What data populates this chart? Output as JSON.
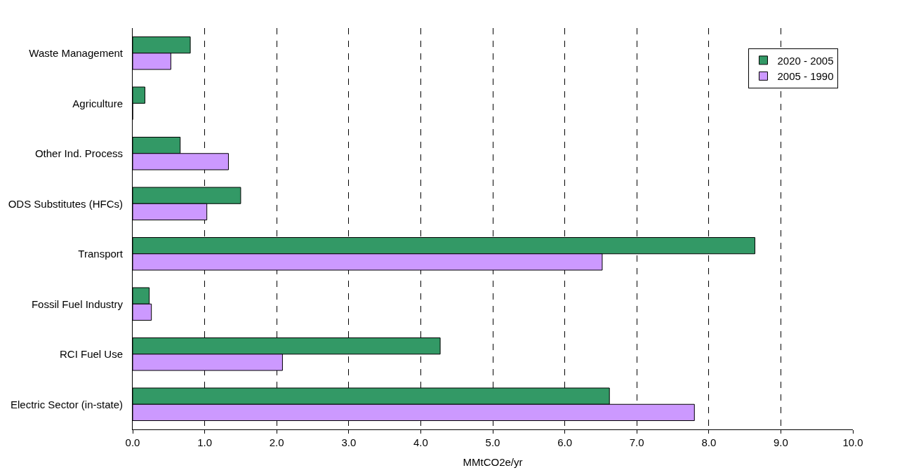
{
  "chart_data": {
    "type": "bar",
    "orientation": "horizontal",
    "xlabel": "MMtCO2e/yr",
    "categories": [
      "Waste Management",
      "Agriculture",
      "Other Ind. Process",
      "ODS Substitutes (HFCs)",
      "Transport",
      "Fossil Fuel Industry",
      "RCI Fuel Use",
      "Electric Sector (in-state)"
    ],
    "series": [
      {
        "name": "2020 - 2005",
        "color": "#339966",
        "values": [
          0.8,
          0.17,
          0.66,
          1.5,
          8.64,
          0.23,
          4.27,
          6.62
        ]
      },
      {
        "name": "2005 - 1990",
        "color": "#cc99ff",
        "values": [
          0.53,
          0,
          1.33,
          1.03,
          6.52,
          0.26,
          2.08,
          7.8
        ]
      }
    ],
    "xlim": [
      0,
      10
    ],
    "xticks": [
      {
        "value": 0,
        "label": "0.0"
      },
      {
        "value": 1,
        "label": "1.0"
      },
      {
        "value": 2,
        "label": "2.0"
      },
      {
        "value": 3,
        "label": "3.0"
      },
      {
        "value": 4,
        "label": "4.0"
      },
      {
        "value": 5,
        "label": "5.0"
      },
      {
        "value": 6,
        "label": "6.0"
      },
      {
        "value": 7,
        "label": "7.0"
      },
      {
        "value": 8,
        "label": "8.0"
      },
      {
        "value": 9,
        "label": "9.0"
      },
      {
        "value": 10,
        "label": "10.0"
      }
    ],
    "grid": "x",
    "legend": "top right"
  }
}
